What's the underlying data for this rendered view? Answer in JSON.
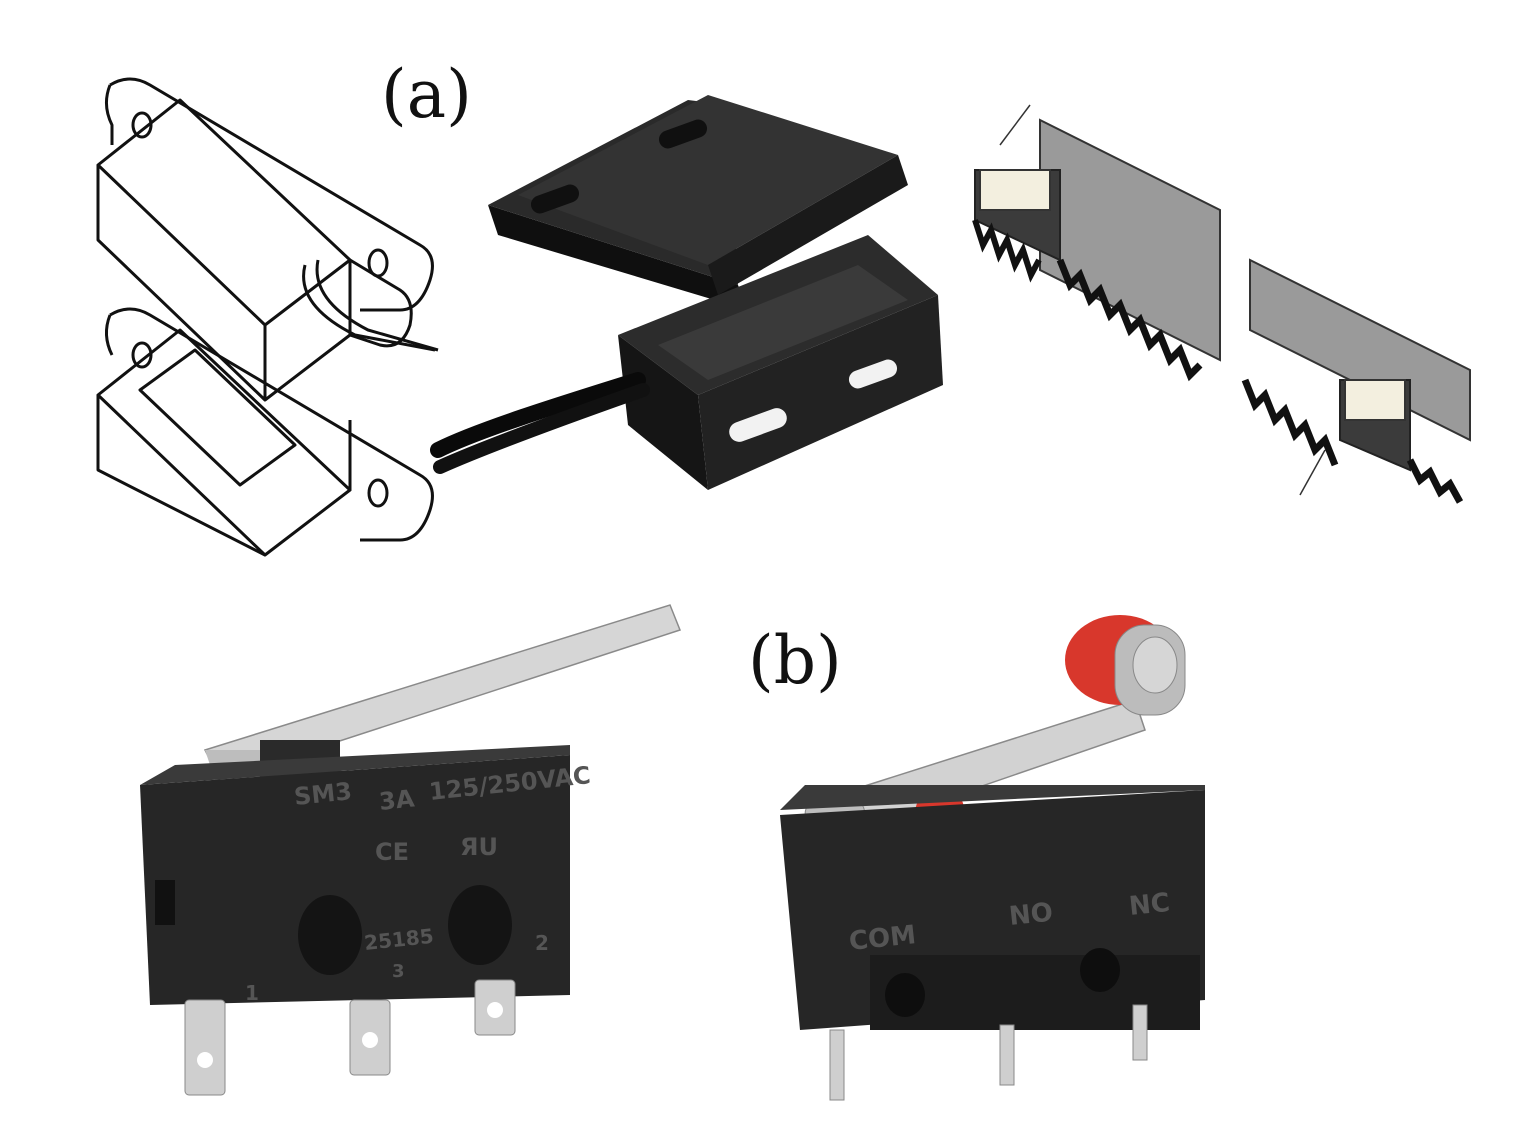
{
  "figure": {
    "labels": {
      "a": "(a)",
      "b": "(b)"
    }
  },
  "lever_switch": {
    "markings": {
      "model": "SM3",
      "current": "3A",
      "voltage": "125/250VAC",
      "ce": "CE",
      "ur": "ЯU",
      "cert_number": "25185",
      "cert_suffix": "3",
      "terminal_1": "1",
      "terminal_2": "2"
    }
  },
  "roller_switch": {
    "markings": {
      "com": "COM",
      "no": "NO",
      "nc": "NC"
    }
  },
  "colors": {
    "plastic_black": "#1e1e1e",
    "metal": "#c9c9c9",
    "roller_red": "#d8372c",
    "track_gray": "#9a9a9a"
  },
  "icons": [
    "reed-switch-drawing-icon",
    "reed-switch-photo-icon",
    "reed-track-3d-icon",
    "lever-microswitch-icon",
    "roller-microswitch-icon"
  ]
}
